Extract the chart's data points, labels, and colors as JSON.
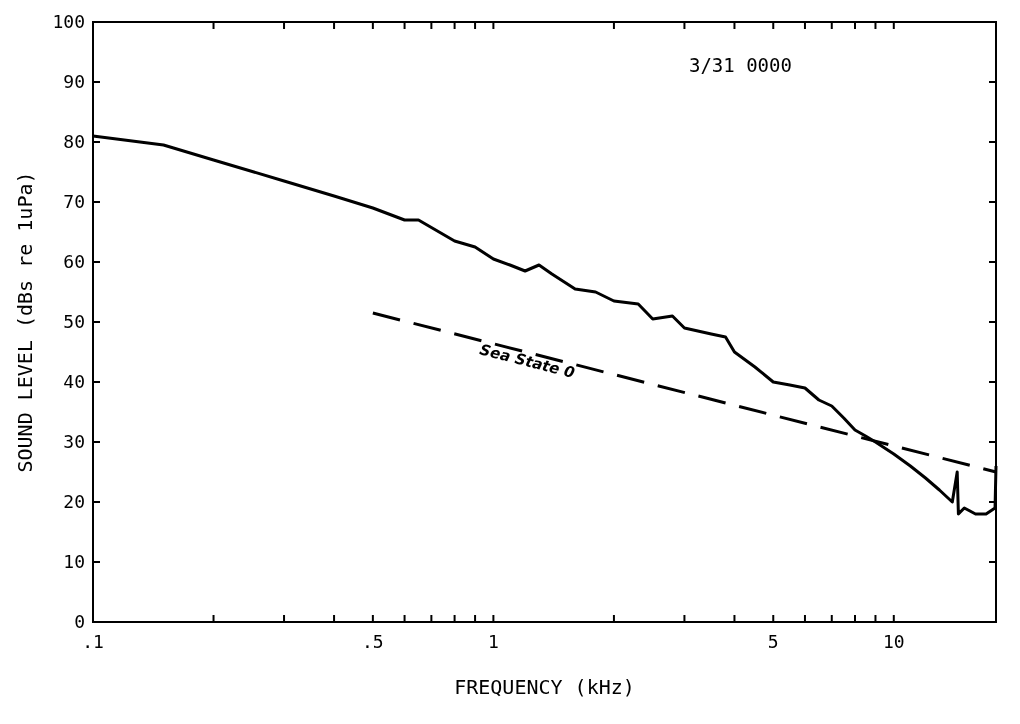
{
  "chart_data": {
    "type": "line",
    "xlabel": "FREQUENCY (kHz)",
    "ylabel": "SOUND LEVEL (dBs re 1uPa)",
    "log": "x",
    "xlim": [
      0.1,
      18
    ],
    "ylim": [
      0,
      100
    ],
    "xticks": [
      {
        "value": 0.1,
        "label": ".1"
      },
      {
        "value": 0.2,
        "label": null
      },
      {
        "value": 0.3,
        "label": null
      },
      {
        "value": 0.4,
        "label": null
      },
      {
        "value": 0.5,
        "label": ".5"
      },
      {
        "value": 0.6,
        "label": null
      },
      {
        "value": 0.7,
        "label": null
      },
      {
        "value": 0.8,
        "label": null
      },
      {
        "value": 0.9,
        "label": null
      },
      1,
      {
        "value": 2,
        "label": null
      },
      {
        "value": 3,
        "label": null
      },
      {
        "value": 4,
        "label": null
      },
      5,
      {
        "value": 6,
        "label": null
      },
      {
        "value": 7,
        "label": null
      },
      {
        "value": 8,
        "label": null
      },
      {
        "value": 9,
        "label": null
      },
      10
    ],
    "yticks": [
      0,
      10,
      20,
      30,
      40,
      50,
      60,
      70,
      80,
      90,
      100
    ],
    "grid": false,
    "marker": "none",
    "annotations": [
      "3/31 0000"
    ],
    "series": [
      {
        "color": "#000000",
        "line_style": "solid",
        "x": [
          0.1,
          0.15,
          0.2,
          0.3,
          0.4,
          0.5,
          0.6,
          0.65,
          0.8,
          0.9,
          1.0,
          1.1,
          1.2,
          1.3,
          1.4,
          1.6,
          1.8,
          2.0,
          2.3,
          2.5,
          2.8,
          3.0,
          3.5,
          3.8,
          4.0,
          4.5,
          5.0,
          5.5,
          6.0,
          6.5,
          7.0,
          7.5,
          8.0,
          8.5,
          9,
          10,
          11,
          12,
          13,
          14,
          14.4,
          14.5,
          15,
          16,
          17,
          17.9,
          18
        ],
        "values": [
          81,
          79.5,
          77,
          73.5,
          71,
          69,
          67,
          67,
          63.5,
          62.5,
          60.5,
          59.5,
          58.5,
          59.5,
          58,
          55.5,
          55,
          53.5,
          53,
          50.5,
          51,
          49,
          48,
          47.5,
          45,
          42.5,
          40,
          39.5,
          39,
          37,
          36,
          34,
          32,
          31,
          30,
          28,
          26,
          24,
          22,
          20,
          25,
          18,
          19,
          18,
          18,
          19,
          26
        ]
      },
      {
        "name": "Sea State 0",
        "color": "#000000",
        "line_style": "dashed",
        "x": [
          0.5,
          18
        ],
        "values": [
          51.5,
          25
        ]
      }
    ]
  }
}
